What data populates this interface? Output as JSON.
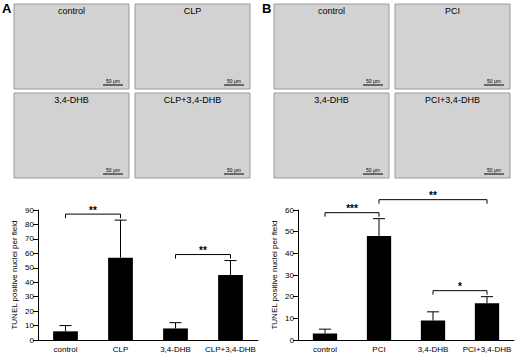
{
  "chart_data": [
    {
      "type": "bar",
      "panel": "A",
      "images": [
        "control",
        "CLP",
        "3,4-DHB",
        "CLP+3,4-DHB"
      ],
      "scale_bar": "50 μm",
      "categories": [
        "control",
        "CLP",
        "3,4-DHB",
        "CLP+3,4-DHB"
      ],
      "values": [
        6,
        57,
        8,
        45
      ],
      "errors": [
        4,
        26,
        4,
        10
      ],
      "color": "#000000",
      "ylabel": "TUNEL positive nuclei per field",
      "ylim": [
        0,
        90
      ],
      "yticks": [
        0,
        10,
        20,
        30,
        40,
        50,
        60,
        70,
        80,
        90
      ],
      "grid": false,
      "significance": [
        {
          "between": [
            "control",
            "CLP"
          ],
          "label": "**"
        },
        {
          "between": [
            "3,4-DHB",
            "CLP+3,4-DHB"
          ],
          "label": "**"
        }
      ]
    },
    {
      "type": "bar",
      "panel": "B",
      "images": [
        "control",
        "PCI",
        "3,4-DHB",
        "PCI+3,4-DHB"
      ],
      "scale_bar": "50 μm",
      "categories": [
        "control",
        "PCI",
        "3,4-DHB",
        "PCI+3,4-DHB"
      ],
      "values": [
        3,
        48,
        9,
        17
      ],
      "errors": [
        2,
        8,
        4,
        3
      ],
      "color": "#000000",
      "ylabel": "TUNEL positive nuclei per field",
      "ylim": [
        0,
        60
      ],
      "yticks": [
        0,
        10,
        20,
        30,
        40,
        50,
        60
      ],
      "grid": false,
      "significance": [
        {
          "between": [
            "control",
            "PCI"
          ],
          "label": "***"
        },
        {
          "between": [
            "PCI",
            "PCI+3,4-DHB"
          ],
          "label": "**"
        },
        {
          "between": [
            "3,4-DHB",
            "PCI+3,4-DHB"
          ],
          "label": "*"
        }
      ]
    }
  ]
}
